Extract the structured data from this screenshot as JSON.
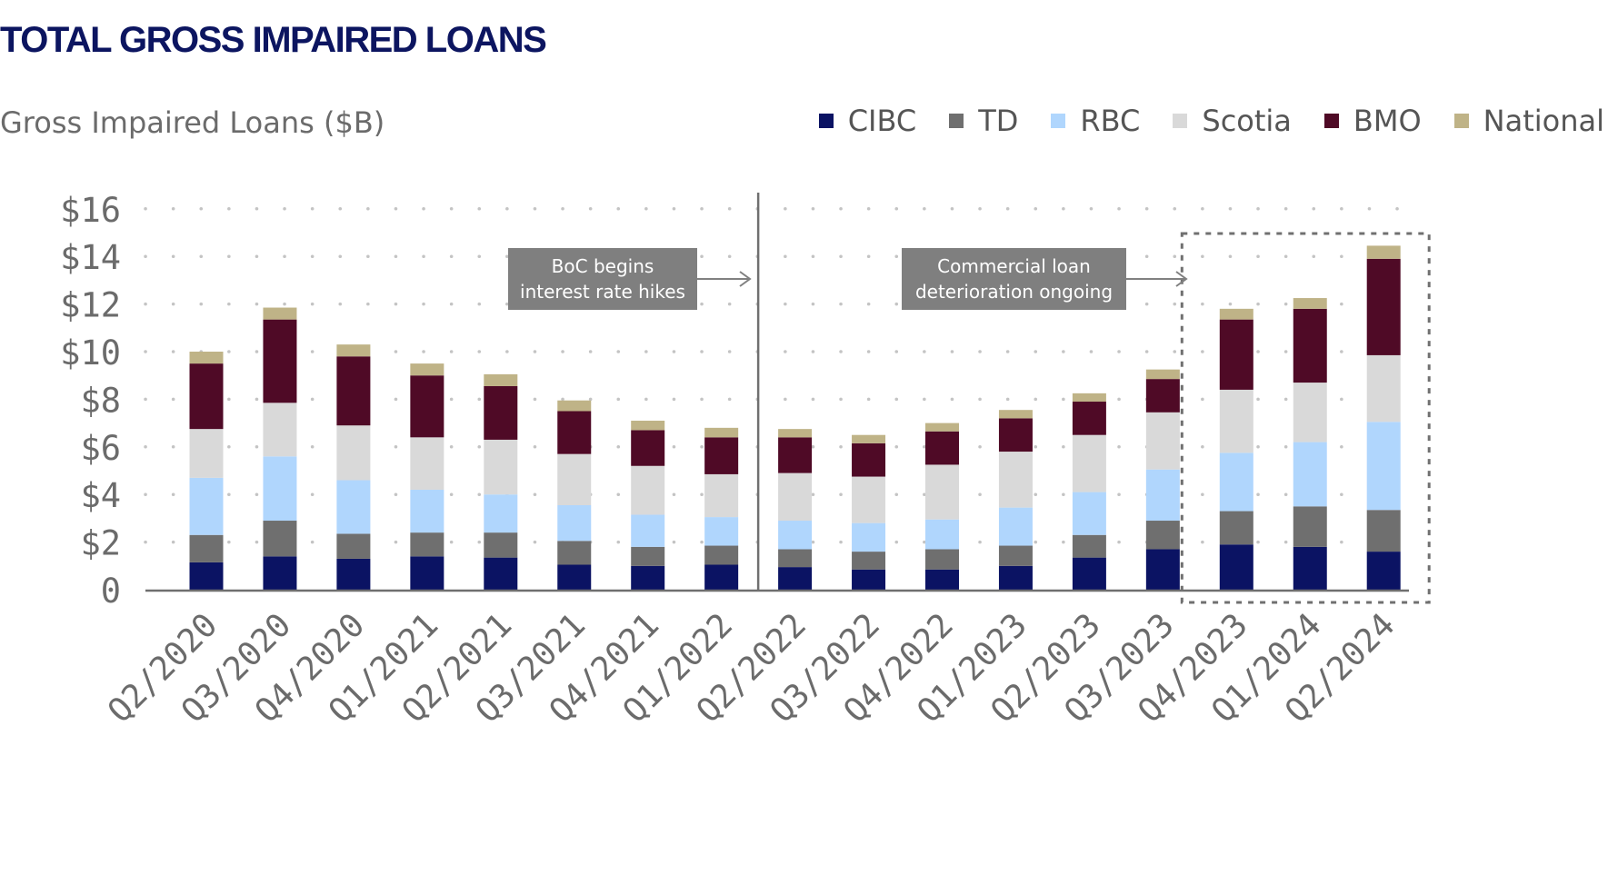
{
  "page": {
    "title": "TOTAL GROSS IMPAIRED LOANS"
  },
  "chart_data": {
    "type": "bar",
    "stacked": true,
    "title": "TOTAL GROSS IMPAIRED LOANS",
    "subtitle": "Gross Impaired Loans ($B)",
    "xlabel": "",
    "ylabel": "",
    "ylim": [
      0,
      16
    ],
    "yticks": [
      {
        "value": 0,
        "label": "0"
      },
      {
        "value": 2,
        "label": "$2"
      },
      {
        "value": 4,
        "label": "$4"
      },
      {
        "value": 6,
        "label": "$6"
      },
      {
        "value": 8,
        "label": "$8"
      },
      {
        "value": 10,
        "label": "$10"
      },
      {
        "value": 12,
        "label": "$12"
      },
      {
        "value": 14,
        "label": "$14"
      },
      {
        "value": 16,
        "label": "$16"
      }
    ],
    "grid": "horizontal-dotted",
    "legend_position": "top-right",
    "categories": [
      "Q2/2020",
      "Q3/2020",
      "Q4/2020",
      "Q1/2021",
      "Q2/2021",
      "Q3/2021",
      "Q4/2021",
      "Q1/2022",
      "Q2/2022",
      "Q3/2022",
      "Q4/2022",
      "Q1/2023",
      "Q2/2023",
      "Q3/2023",
      "Q4/2023",
      "Q1/2024",
      "Q2/2024"
    ],
    "series": [
      {
        "name": "CIBC",
        "color": "#0b1363",
        "values": [
          1.15,
          1.4,
          1.3,
          1.4,
          1.35,
          1.05,
          1.0,
          1.05,
          0.95,
          0.85,
          0.85,
          1.0,
          1.35,
          1.7,
          1.9,
          1.8,
          1.6
        ]
      },
      {
        "name": "TD",
        "color": "#6f6f6f",
        "values": [
          1.15,
          1.5,
          1.05,
          1.0,
          1.05,
          1.0,
          0.8,
          0.8,
          0.75,
          0.75,
          0.85,
          0.85,
          0.95,
          1.2,
          1.4,
          1.7,
          1.75
        ]
      },
      {
        "name": "RBC",
        "color": "#b0d6fd",
        "values": [
          2.4,
          2.7,
          2.25,
          1.8,
          1.6,
          1.5,
          1.35,
          1.2,
          1.2,
          1.2,
          1.25,
          1.6,
          1.8,
          2.15,
          2.45,
          2.7,
          3.7
        ]
      },
      {
        "name": "Scotia",
        "color": "#d9d9d9",
        "values": [
          2.05,
          2.25,
          2.3,
          2.2,
          2.3,
          2.15,
          2.05,
          1.8,
          2.0,
          1.95,
          2.3,
          2.35,
          2.4,
          2.4,
          2.65,
          2.5,
          2.8
        ]
      },
      {
        "name": "BMO",
        "color": "#4f0a26",
        "values": [
          2.75,
          3.5,
          2.9,
          2.6,
          2.25,
          1.8,
          1.5,
          1.55,
          1.5,
          1.4,
          1.4,
          1.4,
          1.4,
          1.4,
          2.95,
          3.1,
          4.05
        ]
      },
      {
        "name": "National",
        "color": "#bfb387",
        "values": [
          0.5,
          0.5,
          0.5,
          0.5,
          0.5,
          0.45,
          0.4,
          0.4,
          0.35,
          0.35,
          0.35,
          0.35,
          0.35,
          0.4,
          0.45,
          0.45,
          0.55
        ]
      }
    ],
    "annotations": [
      {
        "text_lines": [
          "BoC begins",
          "interest rate hikes"
        ],
        "arrow": "right",
        "points_to": "between Q1/2022 and Q2/2022",
        "vertical_divider": true
      },
      {
        "text_lines": [
          "Commercial loan",
          "deterioration ongoing"
        ],
        "arrow": "right",
        "points_to": "Q4/2023 to Q2/2024 (dashed box)"
      }
    ],
    "highlight_box_categories": [
      "Q4/2023",
      "Q1/2024",
      "Q2/2024"
    ]
  }
}
